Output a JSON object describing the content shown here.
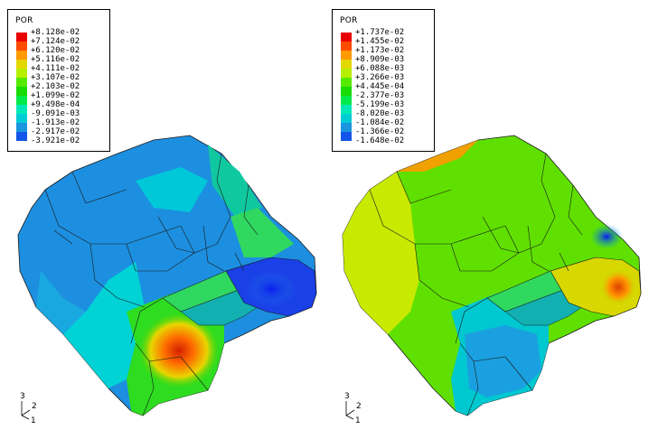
{
  "panels": [
    {
      "legend": {
        "title": "POR",
        "levels": [
          "+8.128e-02",
          "+7.124e-02",
          "+6.120e-02",
          "+5.116e-02",
          "+4.111e-02",
          "+3.107e-02",
          "+2.103e-02",
          "+1.099e-02",
          "+9.498e-04",
          "-9.091e-03",
          "-1.913e-02",
          "-2.917e-02",
          "-3.921e-02"
        ]
      },
      "triad": {
        "axis_3": "3",
        "axis_2": "2",
        "axis_1": "1"
      }
    },
    {
      "legend": {
        "title": "POR",
        "levels": [
          "+1.737e-02",
          "+1.455e-02",
          "+1.173e-02",
          "+8.909e-03",
          "+6.088e-03",
          "+3.266e-03",
          "+4.445e-04",
          "-2.377e-03",
          "-5.199e-03",
          "-8.020e-03",
          "-1.084e-02",
          "-1.366e-02",
          "-1.648e-02"
        ]
      },
      "triad": {
        "axis_3": "3",
        "axis_2": "2",
        "axis_1": "1"
      }
    }
  ],
  "colormap": [
    "#e80000",
    "#ff4b00",
    "#ff9a00",
    "#e4d800",
    "#b6ef00",
    "#55ea00",
    "#18dc00",
    "#00ea4a",
    "#00e9b5",
    "#00ccd6",
    "#1a96e0",
    "#1255e8",
    "#0012ff"
  ]
}
